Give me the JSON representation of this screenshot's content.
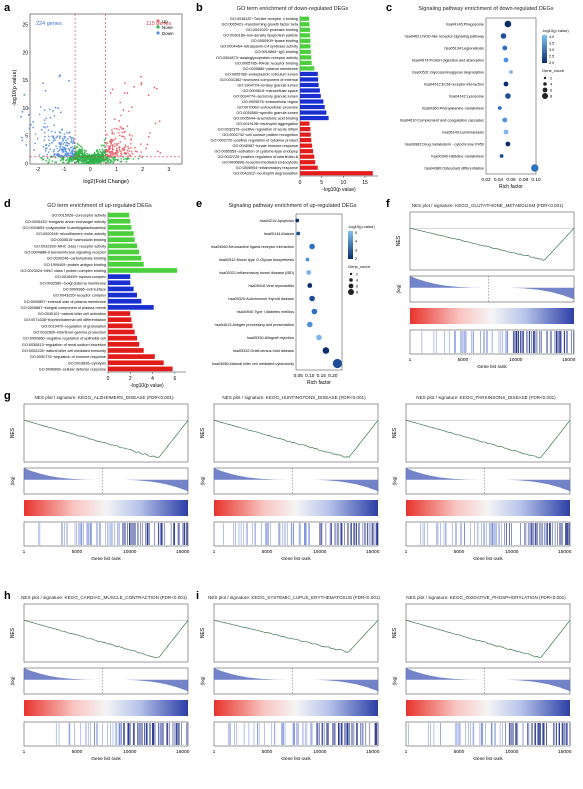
{
  "panels": {
    "a": {
      "label": "a",
      "up_count": "115 genes",
      "down_count": "224 genes",
      "legend": [
        "Up",
        "None",
        "Down"
      ],
      "colors": {
        "up": "#e8636b",
        "none": "#2fb34a",
        "down": "#5b8fe0",
        "threshold": "#d7343b"
      },
      "xlabel": "log2(Fold Change)",
      "ylabel": "-log10(p value)",
      "xticks": [
        "-2",
        "-1",
        "0",
        "1",
        "2",
        "3"
      ],
      "yticks": [
        "0",
        "5",
        "10",
        "15",
        "20",
        "25"
      ]
    },
    "b": {
      "label": "b",
      "title": "GO term enrichment of down-regulated DEGs",
      "xlabel": "-log10(p value)",
      "xticks": [
        "0",
        "5",
        "10",
        "15"
      ],
      "terms": [
        "GO:0038187~Toll-like receptor 4 binding",
        "GO:0005421~transforming growth factor beta",
        "GO:0002020~protease binding",
        "GO:0030169~low-density lipoprotein particle",
        "GO:0050509~lipase binding",
        "GO:0004464~tetraspanin-C4 synthase activity",
        "GO:0019864~IgG binding",
        "GO:0004873~asialoglycoprotein receptor activity",
        "GO:0005785~RAGE receptor binding",
        "GO:0005886~plasma membrane",
        "GO:0005788~endoplasmic reticulum lumen",
        "GO:0031362~anchored component of external",
        "GO:1904724~tertiary granule lumen",
        "GO:0009615~extracellular space",
        "GO:0034774~secretory granule lumen",
        "GO:0005576~extracellular region",
        "GO:0070062~extracellular exosome",
        "GO:0035580~specific granule lumen",
        "GO:0005044~arachidonic acid binding",
        "GO:0019198~neutrophil aggregation",
        "GO:0032379~positive regulation of acute inflam",
        "GO:0002732~cell surface pattern recognition",
        "GO:0002720~positive regulation of cytokine product",
        "GO:0045087~innate immune response",
        "GO:0060559~activation of cysteine-type endopep",
        "GO:0032729~positive regulation of interleukin-8",
        "GO:0006898~receptor-mediated endocytosis",
        "GO:0006954~inflammatory response",
        "GO:0043312~neutrophil degranulation"
      ],
      "values": [
        2.1,
        2.2,
        2.3,
        2.3,
        2.4,
        2.4,
        2.5,
        2.6,
        2.7,
        3.3,
        4.1,
        4.2,
        4.3,
        4.6,
        4.8,
        5.4,
        5.7,
        6.1,
        6.6,
        2.2,
        2.4,
        2.5,
        2.6,
        2.8,
        3.0,
        3.3,
        3.5,
        4.1,
        16.8
      ],
      "colors": [
        "#4ccf3c",
        "#4ccf3c",
        "#4ccf3c",
        "#4ccf3c",
        "#4ccf3c",
        "#4ccf3c",
        "#4ccf3c",
        "#4ccf3c",
        "#4ccf3c",
        "#4ccf3c",
        "#1a2fd0",
        "#1a2fd0",
        "#1a2fd0",
        "#1a2fd0",
        "#1a2fd0",
        "#1a2fd0",
        "#1a2fd0",
        "#1a2fd0",
        "#1a2fd0",
        "#e21b1b",
        "#e21b1b",
        "#e21b1b",
        "#e21b1b",
        "#e21b1b",
        "#e21b1b",
        "#e21b1b",
        "#e21b1b",
        "#e21b1b",
        "#e21b1b"
      ]
    },
    "c": {
      "label": "c",
      "title": "Signaling pathway enrichment of down-regulated DEGs",
      "xlabel": "Rich factor",
      "xticks": [
        "0.02",
        "0.04",
        "0.06",
        "0.08",
        "0.10"
      ],
      "pathways": [
        "hsa04145:Phagosome",
        "hsa04621:NOD-like receptor signaling pathway",
        "hsa05134:Legionellosis",
        "hsa04974:Protein digestion and absorption",
        "hsa00531:Glycosaminoglycan degradation",
        "hsa04512:ECM-receptor interaction",
        "hsa04142:Lysosome",
        "hsa00360:Phenylalanine metabolism",
        "hsa04610:Complement and coagulation cascades",
        "hsa05140:Leishmaniasis",
        "hsa00982:Drug metabolism - cytochrome P450",
        "hsa00340:Histidine metabolism",
        "hsa04380:Osteoclast differentiation"
      ],
      "rich": [
        0.055,
        0.048,
        0.05,
        0.052,
        0.06,
        0.052,
        0.055,
        0.042,
        0.05,
        0.052,
        0.055,
        0.045,
        0.098
      ],
      "count": [
        5,
        4,
        3,
        3,
        2,
        3,
        4,
        2,
        3,
        3,
        3,
        2,
        6
      ],
      "legend_color_title": "-log10(p value)",
      "legend_color_ticks": [
        "4.0",
        "3.5",
        "3.0",
        "2.5",
        "2.0"
      ],
      "legend_size_title": "Gene_count",
      "legend_size_values": [
        "2",
        "4",
        "6",
        "8"
      ]
    },
    "d": {
      "label": "d",
      "title": "GO term enrichment of up-regulated DEGs",
      "xlabel": "-log10(p value)",
      "xticks": [
        "0",
        "2",
        "4",
        "6"
      ],
      "terms": [
        "GO:0015026~coreceptor activity",
        "GO:0005432~inorganic anion exchanger activity",
        "GO:0004653~polypeptide N-acetylgalactosaminyl",
        "GO:0000146~microfilament motor activity",
        "GO:0005516~calmodulin binding",
        "GO:0032393~MHC class I receptor activity",
        "GO:0004888~transmembrane signaling receptor",
        "GO:0030246~carbohydrate binding",
        "GO:1990405~protein antigen binding",
        "GO:0023024~MHC class I protein complex binding",
        "GO:0016459~myosin complex",
        "GO:0032580~Golgi cisterna membrane",
        "GO:0009986~cell surface",
        "GO:0043235~receptor complex",
        "GO:0009897~external side of plasma membrane",
        "GO:0005887~integral component of plasma memb",
        "GO:0030101~natural killer cell activation",
        "GO:0071638~trophectodermal cell differentiation",
        "GO:0019470~regulation of granulation",
        "GO:0032809~interferon-gamma production",
        "GO:0050860~negative regulation of epithelial cell",
        "GO:0030813~regulation of renal sodium excretion",
        "GO:0002228~natural killer cell mediated immunity",
        "GO:0050776~regulation of immune response",
        "GO:0019835~cytolysis",
        "GO:0006968~cellular defense response"
      ],
      "values": [
        1.9,
        2.0,
        2.1,
        2.3,
        2.4,
        2.6,
        2.8,
        3.0,
        3.2,
        6.2,
        2.0,
        2.0,
        2.3,
        2.6,
        3.0,
        4.1,
        2.0,
        2.1,
        2.2,
        2.4,
        2.6,
        2.8,
        3.2,
        4.2,
        5.0,
        5.8
      ],
      "colors": [
        "#4ccf3c",
        "#4ccf3c",
        "#4ccf3c",
        "#4ccf3c",
        "#4ccf3c",
        "#4ccf3c",
        "#4ccf3c",
        "#4ccf3c",
        "#4ccf3c",
        "#4ccf3c",
        "#1a2fd0",
        "#1a2fd0",
        "#1a2fd0",
        "#1a2fd0",
        "#1a2fd0",
        "#1a2fd0",
        "#e21b1b",
        "#e21b1b",
        "#e21b1b",
        "#e21b1b",
        "#e21b1b",
        "#e21b1b",
        "#e21b1b",
        "#e21b1b",
        "#e21b1b",
        "#e21b1b"
      ]
    },
    "e": {
      "label": "e",
      "title": "Signaling pathway enrichment of up-regulated DEGs",
      "xlabel": "Rich factor",
      "xticks": [
        "0.05",
        "0.10",
        "0.15",
        "0.20"
      ],
      "pathways": [
        "hsa04210:Apoptosis",
        "hsa05144:Malaria",
        "hsa04660:Neuroactive ligand-receptor interaction",
        "hsa00512:Mucin type O-Glycan biosynthesis",
        "hsa05321:Inflammatory bowel disease (IBD)",
        "hsa05416:Viral myocarditis",
        "hsa05320:Autoimmune thyroid disease",
        "hsa04940:Type I diabetes mellitus",
        "hsa04612:Antigen processing and presentation",
        "hsa05330:Allograft rejection",
        "hsa05332:Graft-versus-host disease",
        "hsa04650:Natural killer cell mediated cytotoxicity"
      ],
      "rich": [
        0.045,
        0.05,
        0.11,
        0.09,
        0.095,
        0.1,
        0.11,
        0.12,
        0.1,
        0.14,
        0.17,
        0.22
      ],
      "count": [
        2,
        2,
        4,
        2,
        3,
        3,
        4,
        4,
        4,
        4,
        5,
        8
      ],
      "legend_color_title": "-log10(p value)",
      "legend_color_ticks": [
        "5",
        "4",
        "3",
        "2"
      ],
      "legend_size_title": "Gene_count",
      "legend_size_values": [
        "2",
        "4",
        "6",
        "8"
      ]
    },
    "f": {
      "label": "f",
      "title": "NES plot / signature: KEGG_GLUTATHIONE_METABOLISM (FDR<0.001)",
      "min": -0.32
    },
    "g1": {
      "label": "g",
      "title": "NES plot / signature: KEGG_ALZHEIMERS_DISEASE (FDR<0.001)",
      "min": -0.38
    },
    "g2": {
      "title": "NES plot / signature: KEGG_HUNTINGTONS_DISEASE (FDR<0.001)",
      "min": -0.38
    },
    "g3": {
      "title": "NES plot / signature: KEGG_PARKINSONS_DISEASE (FDR<0.001)",
      "min": -0.38
    },
    "h1": {
      "label": "h",
      "title": "NES plot / signature: KEGG_CARDIAC_MUSCLE_CONTRACTION (FDR<0.001)",
      "min": -0.38
    },
    "i1": {
      "label": "i",
      "title": "NES plot / signature: KEGG_SYSTEMIC_LUPUS_ERYTHEMATOSUS (FDR<0.001)",
      "min": -0.32
    },
    "i2": {
      "title": "NES plot / signature: KEGG_OXIDATIVE_PHOSPHORYLATION (FDR<0.001)",
      "min": -0.38
    },
    "gsea_common": {
      "nes_label": "NES",
      "log_label": "(log)",
      "xlabel": "Gene list rank",
      "xticks": [
        "1",
        "5000",
        "10000",
        "15000"
      ],
      "line_color": "#3f7a4f",
      "bar_color": "#5a6fbf"
    }
  }
}
